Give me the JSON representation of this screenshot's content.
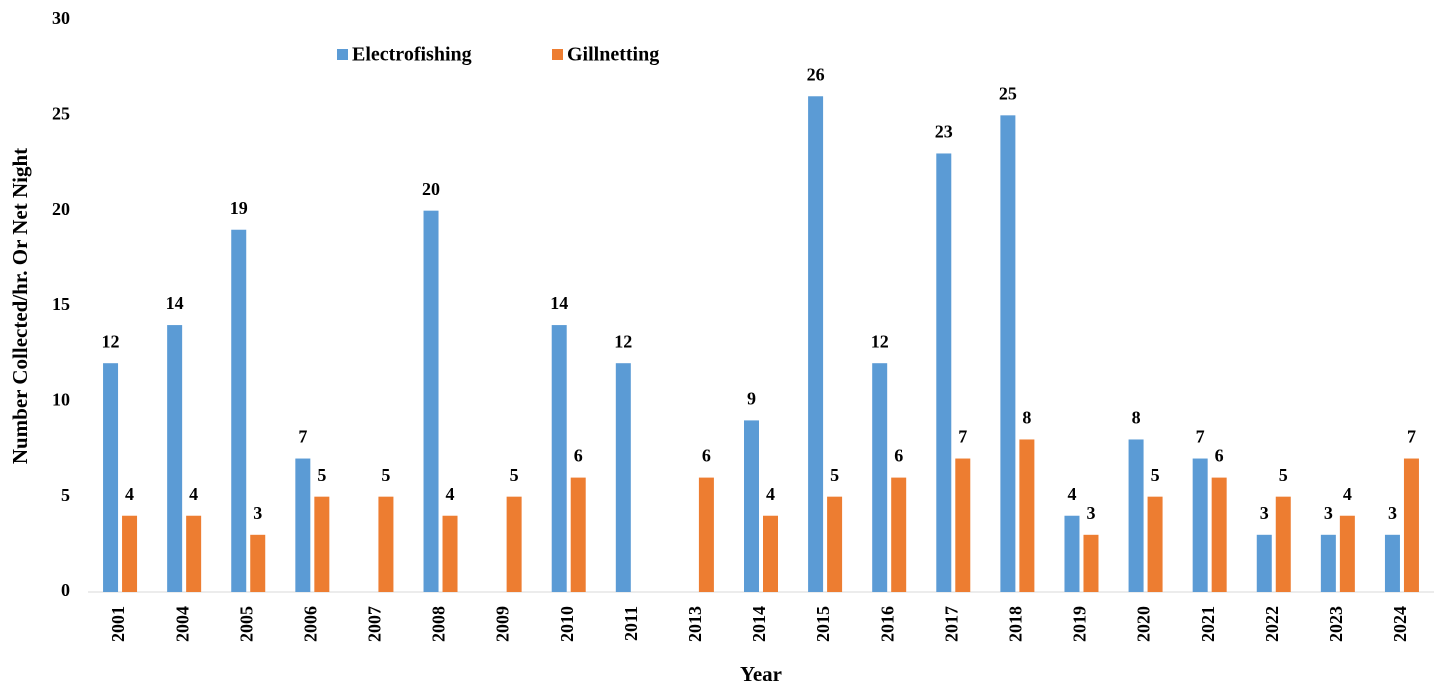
{
  "chart_data": {
    "type": "bar",
    "xlabel": "Year",
    "ylabel": "Number Collected/hr.  Or Net Night",
    "categories": [
      "2001",
      "2004",
      "2005",
      "2006",
      "2007",
      "2008",
      "2009",
      "2010",
      "2011",
      "2013",
      "2014",
      "2015",
      "2016",
      "2017",
      "2018",
      "2019",
      "2020",
      "2021",
      "2022",
      "2023",
      "2024"
    ],
    "series": [
      {
        "name": "Electrofishing",
        "color": "#5b9bd5",
        "values": [
          12,
          14,
          19,
          7,
          null,
          20,
          null,
          14,
          12,
          null,
          9,
          26,
          12,
          23,
          25,
          4,
          8,
          7,
          3,
          3,
          3
        ]
      },
      {
        "name": "Gillnetting",
        "color": "#ed7d31",
        "values": [
          4,
          4,
          3,
          5,
          5,
          4,
          5,
          6,
          null,
          6,
          4,
          5,
          6,
          7,
          8,
          3,
          5,
          6,
          5,
          4,
          7
        ]
      }
    ],
    "ylim": [
      0,
      30
    ],
    "yticks": [
      0,
      5,
      10,
      15,
      20,
      25,
      30
    ],
    "grid": false
  }
}
